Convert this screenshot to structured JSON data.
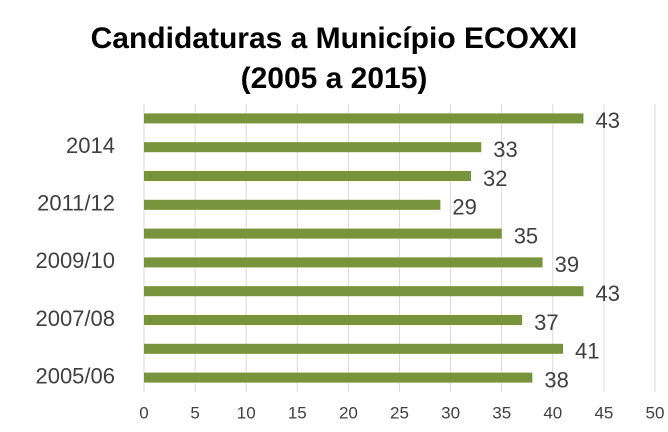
{
  "chart_data": {
    "type": "hbar",
    "title": "Candidaturas a Município ECOXXI",
    "subtitle": "(2005 a 2015)",
    "categories": [
      "2005/06",
      null,
      "2007/08",
      null,
      "2009/10",
      null,
      "2011/12",
      null,
      "2014",
      null
    ],
    "values": [
      38,
      41,
      37,
      43,
      39,
      35,
      29,
      32,
      33,
      43
    ],
    "color": "#77933c",
    "xlim": [
      0,
      50
    ],
    "xticks": [
      0,
      5,
      10,
      15,
      20,
      25,
      30,
      35,
      40,
      45,
      50
    ],
    "grid": true
  }
}
